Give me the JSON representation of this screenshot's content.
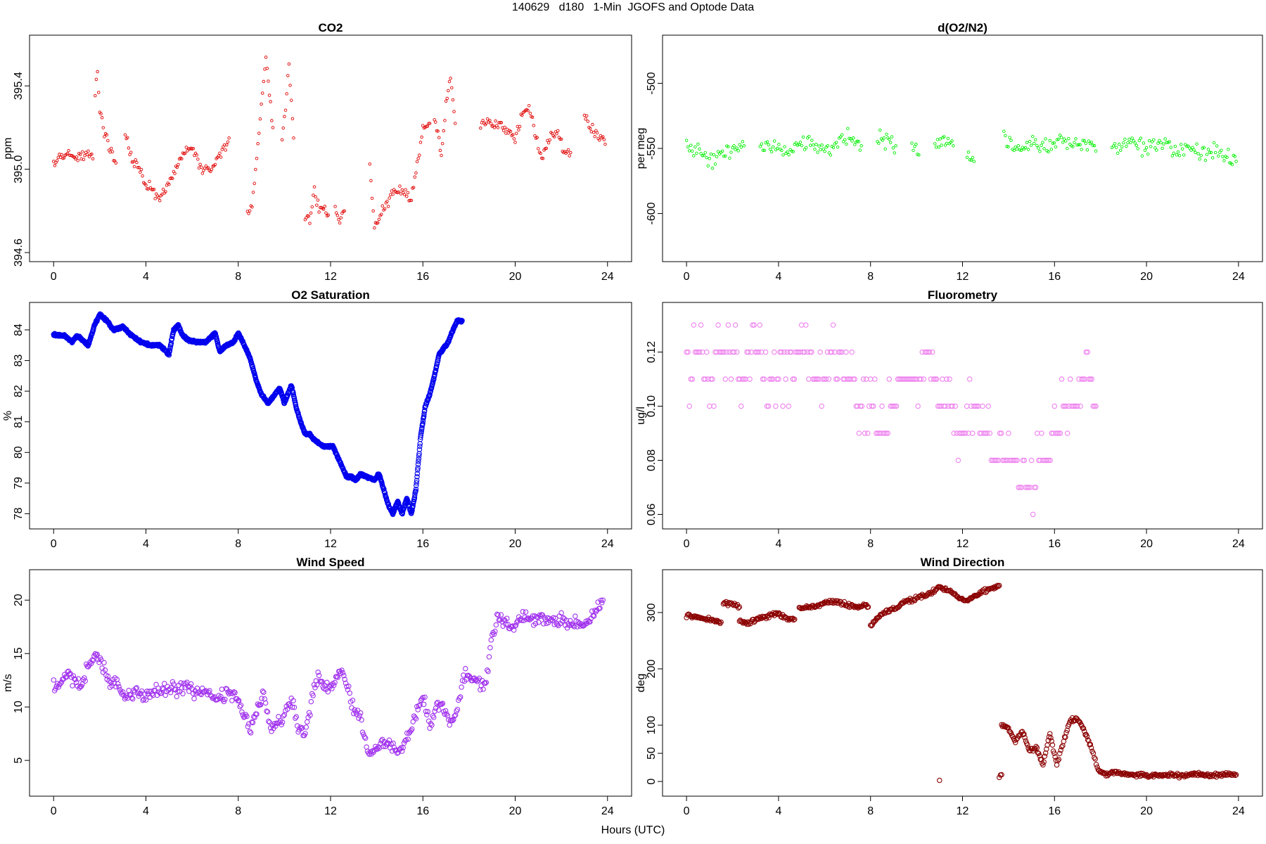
{
  "figure": {
    "title": "140629   d180   1-Min  JGOFS and Optode Data",
    "xlabel": "Hours (UTC)"
  },
  "chart_data": [
    {
      "id": "co2",
      "type": "scatter",
      "title": "CO2",
      "xlabel": "",
      "ylabel": "ppm",
      "color": "#e00000",
      "marker": "small-circle",
      "grid": false,
      "xlim": [
        0,
        24
      ],
      "ylim": [
        394.6,
        395.6
      ],
      "xticks": [
        0,
        4,
        8,
        12,
        16,
        20,
        24
      ],
      "yticks": [
        394.6,
        395.0,
        395.4
      ],
      "segments": [
        {
          "x": [
            0,
            0.3,
            0.6,
            0.9,
            1.2,
            1.5,
            1.7
          ],
          "y": [
            395.02,
            395.05,
            395.08,
            395.05,
            395.06,
            395.08,
            395.05
          ]
        },
        {
          "x": [
            1.8,
            1.9,
            2.0,
            2.2,
            2.4,
            2.6,
            2.7
          ],
          "y": [
            395.38,
            395.47,
            395.3,
            395.18,
            395.1,
            395.05,
            395.03
          ]
        },
        {
          "x": [
            3.1,
            3.4,
            3.7,
            4.0,
            4.3,
            4.6,
            4.9,
            5.2,
            5.6,
            6.0,
            6.4,
            6.8,
            7.2,
            7.6
          ],
          "y": [
            395.18,
            395.05,
            395.0,
            394.93,
            394.9,
            394.85,
            394.92,
            394.98,
            395.07,
            395.1,
            395.0,
            395.0,
            395.07,
            395.15
          ]
        },
        {
          "x": [
            8.4,
            8.6,
            8.8,
            9.0,
            9.2,
            9.5
          ],
          "y": [
            394.8,
            394.83,
            395.05,
            395.3,
            395.55,
            395.2
          ]
        },
        {
          "x": [
            9.9,
            10.1,
            10.2,
            10.4
          ],
          "y": [
            395.12,
            395.35,
            395.5,
            395.15
          ]
        },
        {
          "x": [
            10.9,
            11.1,
            11.3,
            11.5,
            11.7,
            11.9
          ],
          "y": [
            394.78,
            394.75,
            394.9,
            394.8,
            394.82,
            394.78
          ]
        },
        {
          "x": [
            12.2,
            12.4,
            12.6
          ],
          "y": [
            394.8,
            394.76,
            394.8
          ]
        },
        {
          "x": [
            13.7,
            13.9,
            14.2,
            14.5,
            14.8,
            15.1,
            15.5,
            15.8,
            16.0,
            16.3
          ],
          "y": [
            395.02,
            394.7,
            394.8,
            394.85,
            394.9,
            394.9,
            394.85,
            395.05,
            395.2,
            395.22
          ]
        },
        {
          "x": [
            16.5,
            16.8,
            17.0,
            17.2,
            17.4
          ],
          "y": [
            395.25,
            395.08,
            395.3,
            395.45,
            395.22
          ]
        },
        {
          "x": [
            18.5,
            18.8,
            19.1,
            19.4,
            19.7,
            20.0,
            20.3,
            20.6,
            20.9,
            21.2,
            21.5,
            21.8,
            22.1,
            22.4
          ],
          "y": [
            395.22,
            395.25,
            395.2,
            395.22,
            395.18,
            395.15,
            395.25,
            395.3,
            395.15,
            395.05,
            395.15,
            395.2,
            395.08,
            395.08
          ]
        },
        {
          "x": [
            23.0,
            23.3,
            23.6,
            23.9
          ],
          "y": [
            395.25,
            395.2,
            395.15,
            395.12
          ]
        }
      ]
    },
    {
      "id": "do2n2",
      "type": "scatter",
      "title": "d(O2/N2)",
      "xlabel": "",
      "ylabel": "per meg",
      "color": "#00ee00",
      "marker": "small-circle",
      "grid": false,
      "xlim": [
        0,
        24
      ],
      "ylim": [
        -630,
        -470
      ],
      "xticks": [
        0,
        4,
        8,
        12,
        16,
        20,
        24
      ],
      "yticks": [
        -600,
        -550,
        -500
      ],
      "segments": [
        {
          "x": [
            0,
            0.5,
            1.0,
            1.5,
            2.0,
            2.5
          ],
          "y": [
            -550,
            -548,
            -560,
            -555,
            -552,
            -548
          ]
        },
        {
          "x": [
            3.2,
            3.7,
            4.2,
            4.7,
            5.2,
            5.7,
            6.2,
            6.7,
            7.2,
            7.6
          ],
          "y": [
            -550,
            -548,
            -552,
            -550,
            -545,
            -548,
            -552,
            -545,
            -542,
            -548
          ]
        },
        {
          "x": [
            8.3,
            8.7,
            9.1
          ],
          "y": [
            -545,
            -542,
            -548
          ]
        },
        {
          "x": [
            9.8,
            10.1
          ],
          "y": [
            -550,
            -555
          ]
        },
        {
          "x": [
            10.8,
            11.2,
            11.6
          ],
          "y": [
            -548,
            -542,
            -548
          ]
        },
        {
          "x": [
            12.2,
            12.5
          ],
          "y": [
            -552,
            -560
          ]
        },
        {
          "x": [
            13.8,
            14.3,
            14.8,
            15.3,
            15.8,
            16.3,
            16.8,
            17.3,
            17.8
          ],
          "y": [
            -545,
            -550,
            -548,
            -545,
            -550,
            -542,
            -548,
            -545,
            -552
          ]
        },
        {
          "x": [
            18.5,
            19.0,
            19.5,
            20.0,
            20.5,
            21.0,
            21.5,
            22.0,
            22.5,
            23.0,
            23.5,
            23.9
          ],
          "y": [
            -552,
            -548,
            -545,
            -550,
            -545,
            -548,
            -552,
            -550,
            -555,
            -552,
            -555,
            -560
          ]
        }
      ]
    },
    {
      "id": "o2sat",
      "type": "scatter",
      "title": "O2 Saturation",
      "xlabel": "",
      "ylabel": "%",
      "color": "#0000ee",
      "marker": "circle",
      "grid": false,
      "xlim": [
        0,
        24
      ],
      "ylim": [
        77.8,
        84.6
      ],
      "xticks": [
        0,
        4,
        8,
        12,
        16,
        20,
        24
      ],
      "yticks": [
        78,
        79,
        80,
        81,
        82,
        83,
        84
      ],
      "segments": [
        {
          "x": [
            0,
            0.5,
            0.8,
            1.0,
            1.2,
            1.5,
            1.8,
            2.0,
            2.3,
            2.6,
            3.0,
            3.4,
            3.8,
            4.2,
            4.6,
            5.0,
            5.2,
            5.4,
            5.6,
            5.9,
            6.2,
            6.6,
            7.0,
            7.2,
            7.5,
            7.8,
            8.0,
            8.2,
            8.5,
            8.8,
            9.0,
            9.3,
            9.6,
            9.8,
            10.0,
            10.3,
            10.5,
            10.7,
            10.9,
            11.1,
            11.3,
            11.5,
            11.7,
            11.9,
            12.1,
            12.4,
            12.7,
            12.9,
            13.1,
            13.3,
            13.6,
            13.9,
            14.1,
            14.3,
            14.5,
            14.7,
            14.9,
            15.1,
            15.3,
            15.5,
            15.7,
            15.9,
            16.1,
            16.3,
            16.5,
            16.7,
            16.9,
            17.1,
            17.3,
            17.5,
            17.7
          ],
          "y": [
            83.85,
            83.8,
            83.6,
            83.8,
            83.7,
            83.5,
            84.2,
            84.5,
            84.3,
            84.0,
            84.1,
            83.8,
            83.6,
            83.5,
            83.5,
            83.2,
            84.0,
            84.15,
            83.8,
            83.65,
            83.6,
            83.6,
            83.9,
            83.3,
            83.5,
            83.6,
            83.9,
            83.6,
            83.1,
            82.3,
            81.9,
            81.6,
            81.9,
            82.1,
            81.6,
            82.2,
            81.5,
            81.0,
            80.6,
            80.6,
            80.4,
            80.3,
            80.2,
            80.2,
            80.2,
            79.7,
            79.2,
            79.2,
            79.1,
            79.3,
            79.2,
            79.1,
            79.3,
            78.8,
            78.3,
            78.0,
            78.4,
            78.0,
            78.5,
            78.0,
            78.8,
            80.5,
            81.5,
            81.9,
            82.5,
            83.2,
            83.4,
            83.6,
            84.0,
            84.3,
            84.3
          ]
        }
      ]
    },
    {
      "id": "fluor",
      "type": "scatter",
      "title": "Fluorometry",
      "xlabel": "",
      "ylabel": "ug/l",
      "color": "#ee82ee",
      "marker": "circle",
      "grid": false,
      "xlim": [
        0,
        24
      ],
      "ylim": [
        0.058,
        0.135
      ],
      "xticks": [
        0,
        4,
        8,
        12,
        16,
        20,
        24
      ],
      "yticks": [
        0.06,
        0.08,
        0.1,
        0.12
      ],
      "segments": [
        {
          "x": [
            0,
            0.5,
            1.0,
            1.5,
            2.0,
            2.5,
            3.0,
            3.5,
            4.0,
            4.5,
            5.0,
            5.5,
            6.0,
            6.5,
            7.0,
            7.5,
            8.0,
            8.5,
            9.0,
            9.5,
            10.0,
            10.5,
            11.0,
            11.5,
            12.0,
            12.5,
            13.0,
            13.5,
            14.0,
            14.5,
            15.0,
            15.5,
            16.0,
            16.5,
            17.0,
            17.5,
            17.8
          ],
          "y": [
            0.11,
            0.12,
            0.11,
            0.12,
            0.12,
            0.11,
            0.12,
            0.11,
            0.11,
            0.11,
            0.12,
            0.11,
            0.11,
            0.12,
            0.11,
            0.1,
            0.1,
            0.09,
            0.1,
            0.11,
            0.11,
            0.12,
            0.1,
            0.1,
            0.09,
            0.1,
            0.09,
            0.08,
            0.08,
            0.07,
            0.07,
            0.08,
            0.09,
            0.1,
            0.1,
            0.11,
            0.1
          ]
        }
      ]
    },
    {
      "id": "wspd",
      "type": "scatter",
      "title": "Wind Speed",
      "xlabel": "",
      "ylabel": "m/s",
      "color": "#a030ee",
      "marker": "circle",
      "grid": false,
      "xlim": [
        0,
        24
      ],
      "ylim": [
        2.5,
        22
      ],
      "xticks": [
        0,
        4,
        8,
        12,
        16,
        20,
        24
      ],
      "yticks": [
        5,
        10,
        15,
        20
      ],
      "segments": [
        {
          "x": [
            0,
            0.3,
            0.6,
            0.9,
            1.2,
            1.5,
            1.8,
            2.1,
            2.4,
            2.7,
            3.0,
            3.3,
            3.6,
            4.0,
            4.4,
            4.8,
            5.2,
            5.6,
            6.0,
            6.4,
            6.8,
            7.2,
            7.6,
            7.9,
            8.2,
            8.5,
            8.8,
            9.1,
            9.4,
            9.7,
            10.0,
            10.3,
            10.6,
            10.9,
            11.2,
            11.5,
            11.8,
            12.1,
            12.4,
            12.7,
            13.0,
            13.3,
            13.6,
            13.9,
            14.2,
            14.5,
            14.8,
            15.1,
            15.4,
            15.7,
            16.0,
            16.3,
            16.6,
            16.9,
            17.2,
            17.5,
            17.8,
            18.1,
            18.4,
            18.7,
            19.0,
            19.3,
            19.6,
            19.9,
            20.2,
            20.5,
            20.8,
            21.1,
            21.4,
            21.7,
            22.0,
            22.3,
            22.6,
            22.9,
            23.2,
            23.5,
            23.8
          ],
          "y": [
            12.0,
            12.5,
            13.0,
            12.5,
            12.0,
            14.0,
            15.0,
            14.0,
            12.5,
            12.5,
            11.0,
            11.0,
            11.5,
            11.0,
            11.5,
            11.5,
            11.8,
            11.8,
            11.5,
            11.5,
            11.2,
            11.0,
            11.5,
            11.0,
            9.5,
            8.0,
            9.5,
            11.0,
            8.0,
            8.5,
            9.5,
            11.0,
            8.0,
            7.5,
            11.0,
            13.0,
            11.5,
            12.0,
            13.5,
            12.0,
            10.0,
            9.0,
            5.5,
            6.0,
            6.5,
            6.5,
            6.0,
            6.0,
            7.5,
            9.5,
            11.0,
            8.0,
            10.0,
            10.0,
            8.5,
            10.0,
            13.0,
            12.5,
            12.5,
            12.0,
            16.5,
            18.5,
            18.0,
            17.5,
            18.5,
            18.5,
            18.0,
            18.5,
            18.0,
            18.0,
            18.5,
            17.5,
            18.0,
            17.5,
            18.0,
            19.0,
            20.0
          ]
        }
      ]
    },
    {
      "id": "wdir",
      "type": "scatter",
      "title": "Wind Direction",
      "xlabel": "",
      "ylabel": "deg",
      "color": "#8b0000",
      "marker": "circle",
      "grid": false,
      "xlim": [
        0,
        24
      ],
      "ylim": [
        -10,
        360
      ],
      "xticks": [
        0,
        4,
        8,
        12,
        16,
        20,
        24
      ],
      "yticks": [
        0,
        50,
        100,
        200,
        300
      ],
      "segments": [
        {
          "x": [
            0,
            0.4,
            0.8,
            1.2,
            1.5
          ],
          "y": [
            295,
            292,
            290,
            285,
            283
          ]
        },
        {
          "x": [
            1.6,
            2.0,
            2.3
          ],
          "y": [
            318,
            315,
            310
          ]
        },
        {
          "x": [
            2.3,
            2.7,
            3.1,
            3.5,
            3.9,
            4.3,
            4.7
          ],
          "y": [
            285,
            280,
            290,
            293,
            298,
            290,
            288
          ]
        },
        {
          "x": [
            4.9,
            5.3,
            5.7,
            6.1,
            6.5,
            6.9,
            7.3,
            7.7,
            7.9
          ],
          "y": [
            308,
            310,
            312,
            318,
            320,
            315,
            310,
            312,
            310
          ]
        },
        {
          "x": [
            8.0,
            8.3,
            8.6,
            8.9,
            9.2,
            9.5,
            9.8,
            10.1,
            10.4,
            10.7,
            11.0,
            11.3,
            11.6,
            11.9,
            12.2,
            12.5,
            12.8,
            13.1,
            13.4,
            13.6
          ],
          "y": [
            278,
            290,
            300,
            305,
            310,
            320,
            322,
            328,
            330,
            338,
            345,
            340,
            335,
            325,
            320,
            328,
            335,
            340,
            345,
            348
          ]
        },
        {
          "x": [
            11.0
          ],
          "y": [
            2
          ]
        },
        {
          "x": [
            13.6,
            13.7
          ],
          "y": [
            8,
            12
          ]
        },
        {
          "x": [
            13.7,
            14.0,
            14.3,
            14.6,
            14.9,
            15.2,
            15.5,
            15.8,
            16.1,
            16.4,
            16.7,
            17.0,
            17.3,
            17.6,
            17.9,
            18.2,
            18.5,
            18.8,
            19.2,
            19.6,
            20.0,
            20.5,
            21.0,
            21.5,
            22.0,
            22.5,
            23.0,
            23.5,
            23.9
          ],
          "y": [
            100,
            95,
            70,
            90,
            55,
            60,
            30,
            85,
            30,
            70,
            110,
            110,
            90,
            60,
            20,
            12,
            15,
            15,
            12,
            12,
            10,
            12,
            12,
            10,
            12,
            12,
            12,
            12,
            12
          ]
        }
      ]
    }
  ]
}
